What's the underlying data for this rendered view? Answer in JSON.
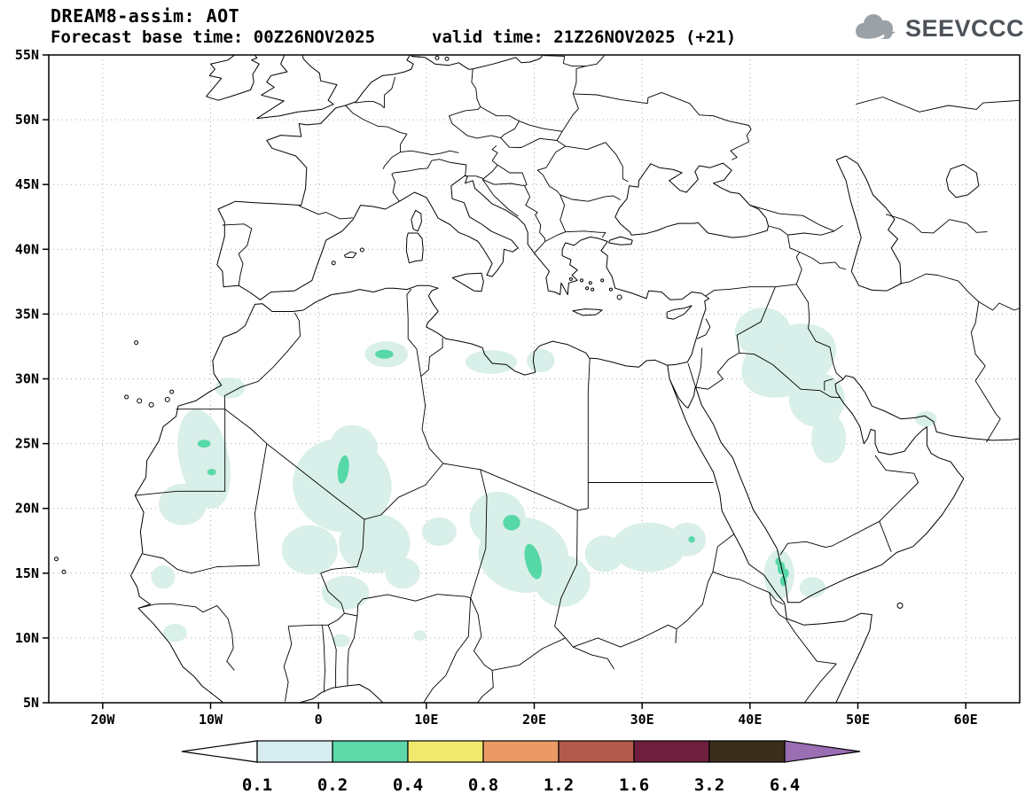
{
  "header": {
    "title": "DREAM8-assim: AOT",
    "forecast_base_label": "Forecast base time: 00Z26NOV2025",
    "valid_label": "valid time: 21Z26NOV2025 (+21)"
  },
  "logo": {
    "text": "SEEVCCC"
  },
  "map": {
    "lon_range": [
      -25,
      65
    ],
    "lat_range": [
      5,
      55
    ],
    "y_ticks": [
      {
        "text": "55N",
        "lat": 55
      },
      {
        "text": "50N",
        "lat": 50
      },
      {
        "text": "45N",
        "lat": 45
      },
      {
        "text": "40N",
        "lat": 40
      },
      {
        "text": "35N",
        "lat": 35
      },
      {
        "text": "30N",
        "lat": 30
      },
      {
        "text": "25N",
        "lat": 25
      },
      {
        "text": "20N",
        "lat": 20
      },
      {
        "text": "15N",
        "lat": 15
      },
      {
        "text": "10N",
        "lat": 10
      },
      {
        "text": "5N",
        "lat": 5
      }
    ],
    "x_ticks": [
      {
        "text": "20W",
        "lon": -20
      },
      {
        "text": "10W",
        "lon": -10
      },
      {
        "text": "0",
        "lon": 0
      },
      {
        "text": "10E",
        "lon": 10
      },
      {
        "text": "20E",
        "lon": 20
      },
      {
        "text": "30E",
        "lon": 30
      },
      {
        "text": "40E",
        "lon": 40
      },
      {
        "text": "50E",
        "lon": 50
      },
      {
        "text": "60E",
        "lon": 60
      }
    ]
  },
  "colors": {
    "aot_01_02": "#d9efe9",
    "aot_02_04": "#57d8a8",
    "coast": "#000000",
    "grid": "#a8a8a8"
  },
  "colorbar": {
    "tick_labels": [
      "0.1",
      "0.2",
      "0.4",
      "0.8",
      "1.2",
      "1.6",
      "3.2",
      "6.4"
    ],
    "box_colors": [
      "#d7edf0",
      "#5cd8a9",
      "#f0e96d",
      "#eb9a66",
      "#b2584c",
      "#6d1f3d",
      "#3b2d1c"
    ],
    "arrow_left_color": "#ffffff",
    "arrow_right_color": "#9b6db3"
  }
}
